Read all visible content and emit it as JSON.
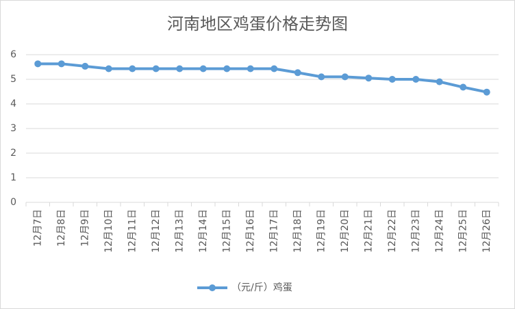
{
  "chart_data": {
    "type": "line",
    "title": "河南地区鸡蛋价格走势图",
    "categories": [
      "12月7日",
      "12月8日",
      "12月9日",
      "12月10日",
      "12月11日",
      "12月12日",
      "12月13日",
      "12月14日",
      "12月15日",
      "12月16日",
      "12月17日",
      "12月18日",
      "12月19日",
      "12月20日",
      "12月21日",
      "12月22日",
      "12月23日",
      "12月24日",
      "12月25日",
      "12月26日"
    ],
    "series": [
      {
        "name": "（元/斤）鸡蛋",
        "color": "#5b9bd5",
        "values": [
          5.63,
          5.63,
          5.53,
          5.43,
          5.43,
          5.43,
          5.43,
          5.43,
          5.43,
          5.43,
          5.43,
          5.27,
          5.1,
          5.1,
          5.05,
          5.0,
          5.0,
          4.9,
          4.68,
          4.48
        ]
      }
    ],
    "ylim": [
      0,
      6
    ],
    "yticks": [
      0,
      1,
      2,
      3,
      4,
      5,
      6
    ],
    "grid": true,
    "legend": "bottom"
  }
}
